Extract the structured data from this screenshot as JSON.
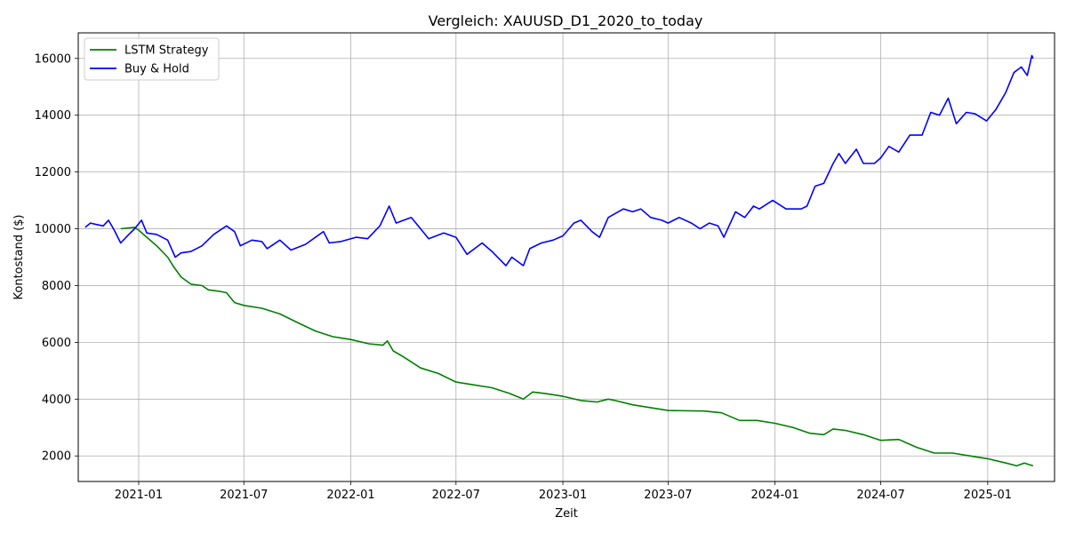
{
  "chart_data": {
    "type": "line",
    "title": "Vergleich: XAUUSD_D1_2020_to_today",
    "xlabel": "Zeit",
    "ylabel": "Kontostand ($)",
    "x_ticks": [
      "2021-01",
      "2021-07",
      "2022-01",
      "2022-07",
      "2023-01",
      "2023-07",
      "2024-01",
      "2024-07",
      "2025-01"
    ],
    "y_ticks": [
      2000,
      4000,
      6000,
      8000,
      10000,
      12000,
      14000,
      16000
    ],
    "xlim": [
      "2020-09-19",
      "2025-04-26"
    ],
    "ylim": [
      1100,
      16900
    ],
    "grid": true,
    "legend_position": "top-left",
    "series": [
      {
        "name": "LSTM Strategy",
        "color": "#008000",
        "points": [
          [
            "2020-12-01",
            10000
          ],
          [
            "2020-12-25",
            10050
          ],
          [
            "2021-01-01",
            9950
          ],
          [
            "2021-01-15",
            9700
          ],
          [
            "2021-02-01",
            9400
          ],
          [
            "2021-02-20",
            9000
          ],
          [
            "2021-03-01",
            8700
          ],
          [
            "2021-03-15",
            8300
          ],
          [
            "2021-04-01",
            8050
          ],
          [
            "2021-04-20",
            8000
          ],
          [
            "2021-05-01",
            7850
          ],
          [
            "2021-05-20",
            7800
          ],
          [
            "2021-06-01",
            7750
          ],
          [
            "2021-06-15",
            7400
          ],
          [
            "2021-07-01",
            7300
          ],
          [
            "2021-08-01",
            7200
          ],
          [
            "2021-09-01",
            7000
          ],
          [
            "2021-10-01",
            6700
          ],
          [
            "2021-11-01",
            6400
          ],
          [
            "2021-12-01",
            6200
          ],
          [
            "2022-01-01",
            6100
          ],
          [
            "2022-02-01",
            5950
          ],
          [
            "2022-02-25",
            5900
          ],
          [
            "2022-03-05",
            6050
          ],
          [
            "2022-03-15",
            5700
          ],
          [
            "2022-04-01",
            5500
          ],
          [
            "2022-05-01",
            5100
          ],
          [
            "2022-06-01",
            4900
          ],
          [
            "2022-07-01",
            4600
          ],
          [
            "2022-08-01",
            4500
          ],
          [
            "2022-09-01",
            4400
          ],
          [
            "2022-10-01",
            4200
          ],
          [
            "2022-10-25",
            4000
          ],
          [
            "2022-11-10",
            4250
          ],
          [
            "2022-12-01",
            4200
          ],
          [
            "2023-01-01",
            4100
          ],
          [
            "2023-02-01",
            3950
          ],
          [
            "2023-03-01",
            3900
          ],
          [
            "2023-03-20",
            4000
          ],
          [
            "2023-04-01",
            3950
          ],
          [
            "2023-05-01",
            3800
          ],
          [
            "2023-06-01",
            3700
          ],
          [
            "2023-07-01",
            3600
          ],
          [
            "2023-09-01",
            3580
          ],
          [
            "2023-10-01",
            3520
          ],
          [
            "2023-11-01",
            3250
          ],
          [
            "2023-12-01",
            3250
          ],
          [
            "2024-01-01",
            3150
          ],
          [
            "2024-02-01",
            3000
          ],
          [
            "2024-03-01",
            2800
          ],
          [
            "2024-03-25",
            2750
          ],
          [
            "2024-04-10",
            2950
          ],
          [
            "2024-05-01",
            2900
          ],
          [
            "2024-06-01",
            2750
          ],
          [
            "2024-07-01",
            2550
          ],
          [
            "2024-08-01",
            2580
          ],
          [
            "2024-09-01",
            2300
          ],
          [
            "2024-10-01",
            2100
          ],
          [
            "2024-11-01",
            2100
          ],
          [
            "2024-12-01",
            2000
          ],
          [
            "2025-01-01",
            1900
          ],
          [
            "2025-02-01",
            1750
          ],
          [
            "2025-02-20",
            1650
          ],
          [
            "2025-03-05",
            1750
          ],
          [
            "2025-03-20",
            1650
          ]
        ]
      },
      {
        "name": "Buy & Hold",
        "color": "#0000ff",
        "points": [
          [
            "2020-10-01",
            10050
          ],
          [
            "2020-10-10",
            10200
          ],
          [
            "2020-10-20",
            10150
          ],
          [
            "2020-11-01",
            10100
          ],
          [
            "2020-11-10",
            10300
          ],
          [
            "2020-11-20",
            9950
          ],
          [
            "2020-12-01",
            9500
          ],
          [
            "2020-12-15",
            9800
          ],
          [
            "2020-12-25",
            10000
          ],
          [
            "2021-01-06",
            10300
          ],
          [
            "2021-01-15",
            9850
          ],
          [
            "2021-02-01",
            9800
          ],
          [
            "2021-02-20",
            9600
          ],
          [
            "2021-03-05",
            9000
          ],
          [
            "2021-03-15",
            9150
          ],
          [
            "2021-04-01",
            9200
          ],
          [
            "2021-04-20",
            9400
          ],
          [
            "2021-05-10",
            9800
          ],
          [
            "2021-06-01",
            10100
          ],
          [
            "2021-06-15",
            9900
          ],
          [
            "2021-06-25",
            9400
          ],
          [
            "2021-07-15",
            9600
          ],
          [
            "2021-08-01",
            9550
          ],
          [
            "2021-08-10",
            9300
          ],
          [
            "2021-09-01",
            9600
          ],
          [
            "2021-09-20",
            9250
          ],
          [
            "2021-10-15",
            9450
          ],
          [
            "2021-11-15",
            9900
          ],
          [
            "2021-11-25",
            9500
          ],
          [
            "2021-12-15",
            9550
          ],
          [
            "2022-01-10",
            9700
          ],
          [
            "2022-01-30",
            9650
          ],
          [
            "2022-02-20",
            10100
          ],
          [
            "2022-03-08",
            10800
          ],
          [
            "2022-03-20",
            10200
          ],
          [
            "2022-04-15",
            10400
          ],
          [
            "2022-05-01",
            10000
          ],
          [
            "2022-05-15",
            9650
          ],
          [
            "2022-06-10",
            9850
          ],
          [
            "2022-07-01",
            9700
          ],
          [
            "2022-07-20",
            9100
          ],
          [
            "2022-08-15",
            9500
          ],
          [
            "2022-09-01",
            9200
          ],
          [
            "2022-09-25",
            8700
          ],
          [
            "2022-10-05",
            9000
          ],
          [
            "2022-10-25",
            8700
          ],
          [
            "2022-11-05",
            9300
          ],
          [
            "2022-11-25",
            9500
          ],
          [
            "2022-12-15",
            9600
          ],
          [
            "2023-01-01",
            9750
          ],
          [
            "2023-01-20",
            10200
          ],
          [
            "2023-02-01",
            10300
          ],
          [
            "2023-02-20",
            9900
          ],
          [
            "2023-03-05",
            9700
          ],
          [
            "2023-03-20",
            10400
          ],
          [
            "2023-04-15",
            10700
          ],
          [
            "2023-05-01",
            10600
          ],
          [
            "2023-05-15",
            10700
          ],
          [
            "2023-06-01",
            10400
          ],
          [
            "2023-06-20",
            10300
          ],
          [
            "2023-07-01",
            10200
          ],
          [
            "2023-07-20",
            10400
          ],
          [
            "2023-08-10",
            10200
          ],
          [
            "2023-08-25",
            10000
          ],
          [
            "2023-09-10",
            10200
          ],
          [
            "2023-09-25",
            10100
          ],
          [
            "2023-10-05",
            9700
          ],
          [
            "2023-10-25",
            10600
          ],
          [
            "2023-11-10",
            10400
          ],
          [
            "2023-11-25",
            10800
          ],
          [
            "2023-12-05",
            10700
          ],
          [
            "2023-12-28",
            11000
          ],
          [
            "2024-01-20",
            10700
          ],
          [
            "2024-02-15",
            10700
          ],
          [
            "2024-02-25",
            10800
          ],
          [
            "2024-03-10",
            11500
          ],
          [
            "2024-03-25",
            11600
          ],
          [
            "2024-04-10",
            12300
          ],
          [
            "2024-04-20",
            12650
          ],
          [
            "2024-05-01",
            12300
          ],
          [
            "2024-05-20",
            12800
          ],
          [
            "2024-06-01",
            12300
          ],
          [
            "2024-06-20",
            12300
          ],
          [
            "2024-07-01",
            12500
          ],
          [
            "2024-07-15",
            12900
          ],
          [
            "2024-08-01",
            12700
          ],
          [
            "2024-08-20",
            13300
          ],
          [
            "2024-09-10",
            13300
          ],
          [
            "2024-09-25",
            14100
          ],
          [
            "2024-10-10",
            14000
          ],
          [
            "2024-10-25",
            14600
          ],
          [
            "2024-11-08",
            13700
          ],
          [
            "2024-11-25",
            14100
          ],
          [
            "2024-12-10",
            14050
          ],
          [
            "2024-12-30",
            13800
          ],
          [
            "2025-01-15",
            14200
          ],
          [
            "2025-02-01",
            14800
          ],
          [
            "2025-02-15",
            15500
          ],
          [
            "2025-02-28",
            15700
          ],
          [
            "2025-03-10",
            15400
          ],
          [
            "2025-03-18",
            16100
          ],
          [
            "2025-03-20",
            16000
          ]
        ]
      }
    ]
  }
}
